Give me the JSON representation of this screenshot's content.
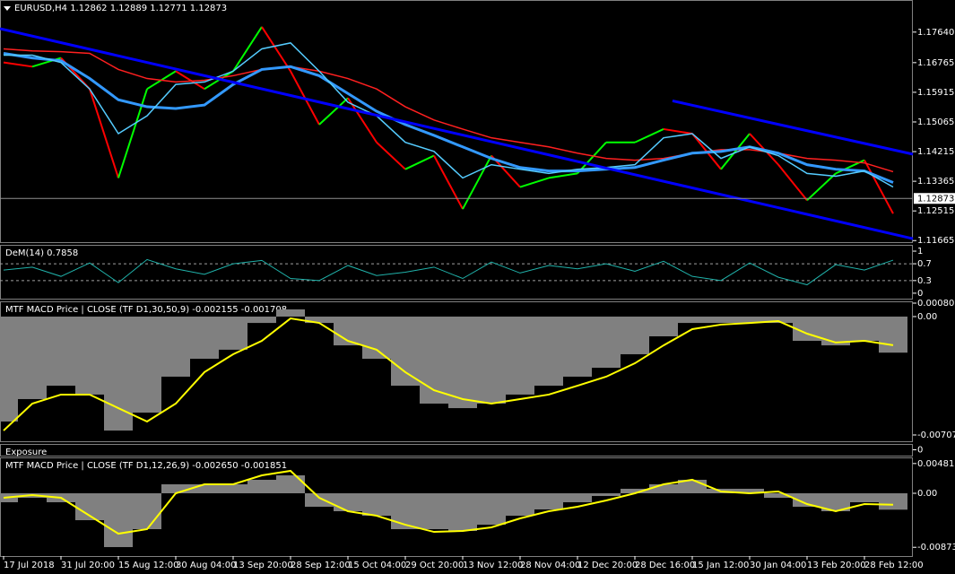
{
  "chart_data": [
    {
      "type": "price",
      "title": "EURUSD,H4  1.12862 1.12889 1.12771 1.12873",
      "last_price": 1.12873,
      "ylim": [
        1.1162,
        1.1856
      ],
      "yticks": [
        {
          "value": 1.1764,
          "label": "1.17640"
        },
        1.16765,
        1.15915,
        1.15065,
        1.14215,
        1.13365,
        1.12515,
        1.11665
      ],
      "series": [
        {
          "color": "#00ff00",
          "down_color": "#ff0000",
          "values": [
            1.1677,
            1.1665,
            1.169,
            1.1601,
            1.1346,
            1.1601,
            1.1652,
            1.1601,
            1.1652,
            1.1779,
            1.1652,
            1.1499,
            1.1575,
            1.1448,
            1.1371,
            1.141,
            1.1257,
            1.141,
            1.132,
            1.1346,
            1.1359,
            1.1448,
            1.1448,
            1.1486,
            1.1473,
            1.1371,
            1.1473,
            1.1384,
            1.1282,
            1.1359,
            1.1397,
            1.1244
          ]
        },
        {
          "color": "#ff2020",
          "values": [
            1.1716,
            1.171,
            1.1708,
            1.1703,
            1.1657,
            1.1631,
            1.1621,
            1.1626,
            1.1639,
            1.1657,
            1.1665,
            1.1652,
            1.1631,
            1.1601,
            1.155,
            1.1512,
            1.1486,
            1.1461,
            1.1448,
            1.1435,
            1.1417,
            1.1402,
            1.1397,
            1.1402,
            1.1417,
            1.1427,
            1.1427,
            1.1417,
            1.1402,
            1.1397,
            1.1389,
            1.1364
          ]
        },
        {
          "color": "#3399ff",
          "width": 3,
          "values": [
            1.1703,
            1.169,
            1.1682,
            1.1631,
            1.157,
            1.155,
            1.1545,
            1.1555,
            1.1614,
            1.1657,
            1.1665,
            1.1639,
            1.1588,
            1.1537,
            1.1499,
            1.1468,
            1.1435,
            1.1402,
            1.1376,
            1.1366,
            1.1366,
            1.1371,
            1.1376,
            1.1397,
            1.1417,
            1.1422,
            1.1435,
            1.1417,
            1.1384,
            1.1371,
            1.1366,
            1.1333
          ]
        },
        {
          "color": "#55ccff",
          "values": [
            1.1698,
            1.1698,
            1.1677,
            1.1601,
            1.1473,
            1.1524,
            1.1614,
            1.1621,
            1.1652,
            1.1716,
            1.1733,
            1.1652,
            1.1563,
            1.1524,
            1.1448,
            1.1422,
            1.1346,
            1.1384,
            1.1371,
            1.1359,
            1.1371,
            1.1376,
            1.1384,
            1.1461,
            1.1473,
            1.1402,
            1.1435,
            1.141,
            1.1359,
            1.1351,
            1.1366,
            1.132
          ]
        }
      ],
      "trendlines": [
        {
          "color": "#0000ff",
          "x": [
            -0.125,
            31.69
          ],
          "y": [
            1.1774,
            1.1172
          ]
        },
        {
          "color": "#0000ff",
          "x": [
            23.31,
            31.69
          ],
          "y": [
            1.1567,
            1.1414
          ]
        }
      ]
    },
    {
      "type": "oscillator",
      "title": "DeM(14) 0.7858",
      "ylim": [
        -0.13,
        1.15
      ],
      "yticks": [
        1,
        0.7,
        0.3,
        0
      ],
      "levels": [
        0.7,
        0.3
      ],
      "color": "#20b2aa",
      "values": [
        0.55,
        0.62,
        0.4,
        0.72,
        0.25,
        0.8,
        0.58,
        0.45,
        0.7,
        0.78,
        0.35,
        0.3,
        0.66,
        0.42,
        0.5,
        0.62,
        0.35,
        0.74,
        0.48,
        0.66,
        0.58,
        0.7,
        0.52,
        0.76,
        0.4,
        0.3,
        0.72,
        0.38,
        0.2,
        0.68,
        0.55,
        0.7858
      ]
    },
    {
      "type": "macd",
      "title": "MTF MACD Price | CLOSE  (TF D1,30,50,9) -0.002155 -0.001708",
      "ylim": [
        -0.00745,
        0.00091
      ],
      "yticks": [
        0.000803,
        {
          "value": 0,
          "label": "0.00"
        },
        -0.007074
      ],
      "series": [
        {
          "color": "#808080",
          "values": [
            -0.00627,
            -0.00493,
            -0.00413,
            -0.00466,
            -0.00681,
            -0.00574,
            -0.00359,
            -0.00252,
            -0.00198,
            -0.00038,
            0.00043,
            -0.00038,
            -0.00172,
            -0.00252,
            -0.00413,
            -0.0052,
            -0.00547,
            -0.0052,
            -0.00466,
            -0.00413,
            -0.00359,
            -0.00306,
            -0.00225,
            -0.00118,
            -0.00038,
            -0.00038,
            -0.00038,
            -0.00038,
            -0.00145,
            -0.00172,
            -0.00145,
            -0.002155
          ]
        },
        {
          "color": "#ffff00",
          "values": [
            -0.00681,
            -0.0052,
            -0.00466,
            -0.00466,
            -0.00547,
            -0.00627,
            -0.0052,
            -0.00332,
            -0.00225,
            -0.00145,
            -0.00011,
            -0.00038,
            -0.00145,
            -0.00198,
            -0.00332,
            -0.0044,
            -0.00493,
            -0.0052,
            -0.00493,
            -0.00466,
            -0.00413,
            -0.00359,
            -0.00279,
            -0.00172,
            -0.00075,
            -0.00048,
            -0.00038,
            -0.00027,
            -0.00102,
            -0.00155,
            -0.00145,
            -0.001708
          ]
        }
      ]
    },
    {
      "type": "indicator",
      "title": "Exposure",
      "yticks": [
        0
      ]
    },
    {
      "type": "macd",
      "title": "MTF MACD Price | CLOSE  (TF D1,12,26,9) -0.002650 -0.001851",
      "ylim": [
        -0.01015,
        0.0058
      ],
      "yticks": [
        0.00481,
        {
          "value": 0,
          "label": "0.00"
        },
        -0.008733
      ],
      "series": [
        {
          "color": "#808080",
          "values": [
            -0.00145,
            -0.00073,
            -0.00145,
            -0.00435,
            -0.0087,
            -0.0058,
            0.00145,
            0.00145,
            0.00145,
            0.00218,
            0.0029,
            -0.00218,
            -0.0029,
            -0.00363,
            -0.0058,
            -0.0058,
            -0.00609,
            -0.00508,
            -0.00363,
            -0.00261,
            -0.00145,
            -0.00044,
            0.00073,
            0.00145,
            0.00218,
            0.00073,
            0.00073,
            -0.00073,
            -0.00218,
            -0.0029,
            -0.00145,
            -0.00265
          ]
        },
        {
          "color": "#ffff00",
          "values": [
            -0.00073,
            -0.00029,
            -0.00073,
            -0.00363,
            -0.00653,
            -0.0058,
            0,
            0.00145,
            0.00145,
            0.0029,
            0.00363,
            -0.00073,
            -0.0029,
            -0.00363,
            -0.00508,
            -0.00624,
            -0.00609,
            -0.00551,
            -0.00406,
            -0.0029,
            -0.00218,
            -0.00116,
            0,
            0.00145,
            0.00218,
            0.00029,
            0,
            0.00029,
            -0.00174,
            -0.0029,
            -0.00174,
            -0.001851
          ]
        }
      ],
      "categories": [
        "17 Jul 2018",
        null,
        "31 Jul 20:00",
        null,
        "15 Aug 12:00",
        null,
        "30 Aug 04:00",
        null,
        "13 Sep 20:00",
        null,
        "28 Sep 12:00",
        null,
        "15 Oct 04:00",
        null,
        "29 Oct 20:00",
        null,
        "13 Nov 12:00",
        null,
        "28 Nov 04:00",
        null,
        "12 Dec 20:00",
        null,
        "28 Dec 16:00",
        null,
        "15 Jan 12:00",
        null,
        "30 Jan 04:00",
        null,
        "13 Feb 20:00",
        null,
        "28 Feb 12:00",
        null
      ]
    }
  ]
}
